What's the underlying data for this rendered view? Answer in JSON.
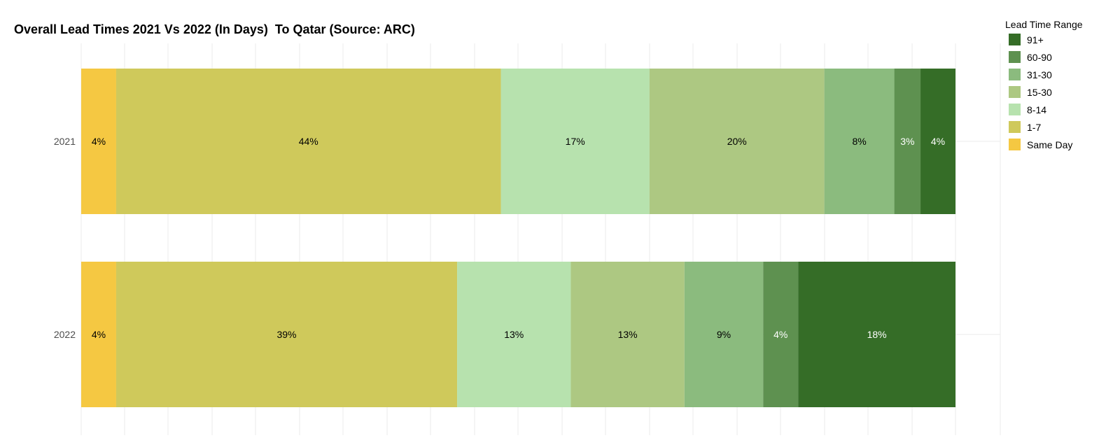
{
  "chart_data": {
    "type": "bar",
    "orientation": "horizontal",
    "stacked": true,
    "title": "Overall Lead Times 2021 Vs 2022 (In Days)  To Qatar (Source: ARC)",
    "xlabel": "",
    "ylabel": "",
    "categories": [
      "2021",
      "2022"
    ],
    "xlim": [
      0,
      100
    ],
    "grid": true,
    "legend": {
      "title": "Lead Time Range",
      "placement": "top-right",
      "order": [
        "91+",
        "60-90",
        "31-30",
        "15-30",
        "8-14",
        "1-7",
        "Same Day"
      ]
    },
    "series": [
      {
        "name": "Same Day",
        "color": "#F5C842",
        "label_color": "#000000",
        "values": [
          4,
          4
        ],
        "labels": [
          "4%",
          "4%"
        ]
      },
      {
        "name": "1-7",
        "color": "#CFC95B",
        "label_color": "#000000",
        "values": [
          44,
          39
        ],
        "labels": [
          "44%",
          "39%"
        ]
      },
      {
        "name": "8-14",
        "color": "#B7E2AE",
        "label_color": "#000000",
        "values": [
          17,
          13
        ],
        "labels": [
          "17%",
          "13%"
        ]
      },
      {
        "name": "15-30",
        "color": "#ADC882",
        "label_color": "#000000",
        "values": [
          20,
          13
        ],
        "labels": [
          "20%",
          "13%"
        ]
      },
      {
        "name": "31-30",
        "color": "#8BBB7E",
        "label_color": "#000000",
        "values": [
          8,
          9
        ],
        "labels": [
          "8%",
          "9%"
        ]
      },
      {
        "name": "60-90",
        "color": "#5E9150",
        "label_color": "#ffffff",
        "values": [
          3,
          4
        ],
        "labels": [
          "3%",
          "4%"
        ]
      },
      {
        "name": "91+",
        "color": "#356D27",
        "label_color": "#ffffff",
        "values": [
          4,
          18
        ],
        "labels": [
          "4%",
          "18%"
        ]
      }
    ]
  }
}
